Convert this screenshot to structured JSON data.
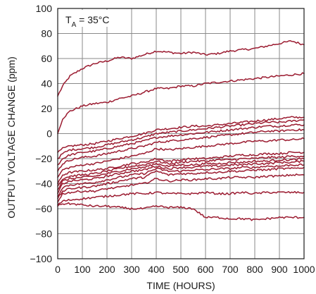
{
  "chart_data": {
    "type": "line",
    "title": "",
    "xlabel": "TIME (HOURS)",
    "ylabel": "OUTPUT VOLTAGE CHANGE (ppm)",
    "xlim": [
      0,
      1000
    ],
    "ylim": [
      -100,
      100
    ],
    "x_ticks": [
      "0",
      "100",
      "200",
      "300",
      "400",
      "500",
      "600",
      "700",
      "800",
      "900",
      "1000"
    ],
    "y_ticks": [
      "100",
      "80",
      "60",
      "40",
      "20",
      "0",
      "−20",
      "−40",
      "−60",
      "−80",
      "−100"
    ],
    "grid": true,
    "annotation": {
      "prefix": "T",
      "subscript": "A",
      "suffix": " = 35°C"
    },
    "line_color": "#9b1b30",
    "x": [
      0,
      20,
      50,
      100,
      150,
      200,
      250,
      300,
      350,
      400,
      450,
      500,
      550,
      600,
      650,
      700,
      750,
      800,
      850,
      900,
      950,
      1000
    ],
    "series": [
      {
        "values": [
          30,
          38,
          46,
          52,
          56,
          58,
          61,
          60,
          63,
          66,
          65,
          64,
          65,
          63,
          64,
          66,
          67,
          68,
          70,
          72,
          74,
          71
        ]
      },
      {
        "values": [
          0,
          12,
          18,
          22,
          24,
          25,
          28,
          30,
          33,
          36,
          36,
          38,
          38,
          40,
          41,
          42,
          43,
          44,
          45,
          46,
          47,
          48
        ]
      },
      {
        "values": [
          -15,
          -12,
          -10,
          -9,
          -8,
          -6,
          -4,
          -2,
          0,
          3,
          4,
          5,
          6,
          6,
          7,
          8,
          9,
          10,
          11,
          12,
          13,
          13
        ]
      },
      {
        "values": [
          -20,
          -16,
          -13,
          -12,
          -11,
          -9,
          -7,
          -5,
          -3,
          0,
          1,
          2,
          3,
          4,
          5,
          6,
          7,
          8,
          9,
          9,
          10,
          11
        ]
      },
      {
        "values": [
          -25,
          -20,
          -17,
          -15,
          -14,
          -12,
          -10,
          -8,
          -6,
          -3,
          -2,
          -1,
          0,
          1,
          2,
          3,
          4,
          5,
          6,
          6,
          7,
          7
        ]
      },
      {
        "values": [
          -30,
          -24,
          -21,
          -19,
          -18,
          -16,
          -14,
          -12,
          -10,
          -7,
          -6,
          -5,
          -4,
          -3,
          -2,
          -1,
          0,
          1,
          2,
          2,
          3,
          3
        ]
      },
      {
        "values": [
          -35,
          -29,
          -27,
          -25,
          -24,
          -22,
          -20,
          -18,
          -16,
          -12,
          -13,
          -12,
          -11,
          -10,
          -9,
          -8,
          -7,
          -6,
          -6,
          -5,
          -5,
          -4
        ]
      },
      {
        "values": [
          -40,
          -33,
          -31,
          -30,
          -29,
          -28,
          -26,
          -24,
          -23,
          -20,
          -22,
          -21,
          -20,
          -20,
          -19,
          -18,
          -17,
          -17,
          -16,
          -16,
          -15,
          -15
        ]
      },
      {
        "values": [
          -42,
          -36,
          -34,
          -33,
          -32,
          -30,
          -28,
          -26,
          -25,
          -22,
          -24,
          -23,
          -22,
          -22,
          -21,
          -21,
          -20,
          -20,
          -19,
          -19,
          -18,
          -18
        ]
      },
      {
        "values": [
          -45,
          -38,
          -36,
          -35,
          -34,
          -32,
          -30,
          -28,
          -27,
          -24,
          -26,
          -25,
          -25,
          -24,
          -24,
          -23,
          -23,
          -22,
          -22,
          -21,
          -21,
          -20
        ]
      },
      {
        "values": [
          -48,
          -40,
          -38,
          -37,
          -36,
          -34,
          -32,
          -30,
          -29,
          -26,
          -28,
          -27,
          -27,
          -26,
          -26,
          -25,
          -25,
          -24,
          -24,
          -23,
          -23,
          -22
        ]
      },
      {
        "values": [
          -50,
          -43,
          -41,
          -40,
          -39,
          -37,
          -35,
          -33,
          -32,
          -28,
          -30,
          -30,
          -29,
          -29,
          -28,
          -28,
          -27,
          -27,
          -26,
          -26,
          -25,
          -25
        ]
      },
      {
        "values": [
          -52,
          -46,
          -44,
          -43,
          -42,
          -40,
          -38,
          -36,
          -35,
          -30,
          -33,
          -32,
          -32,
          -31,
          -31,
          -30,
          -30,
          -29,
          -29,
          -28,
          -28,
          -27
        ]
      },
      {
        "values": [
          -55,
          -48,
          -47,
          -46,
          -46,
          -44,
          -43,
          -41,
          -40,
          -36,
          -38,
          -37,
          -37,
          -36,
          -36,
          -35,
          -35,
          -35,
          -34,
          -34,
          -33,
          -33
        ]
      },
      {
        "values": [
          -57,
          -54,
          -53,
          -52,
          -51,
          -50,
          -49,
          -48,
          -48,
          -47,
          -48,
          -48,
          -48,
          -47,
          -48,
          -48,
          -47,
          -48,
          -47,
          -47,
          -47,
          -47
        ]
      },
      {
        "values": [
          -58,
          -56,
          -56,
          -57,
          -58,
          -58,
          -59,
          -60,
          -60,
          -58,
          -59,
          -59,
          -60,
          -67,
          -67,
          -68,
          -68,
          -69,
          -68,
          -67,
          -67,
          -67
        ]
      }
    ]
  }
}
